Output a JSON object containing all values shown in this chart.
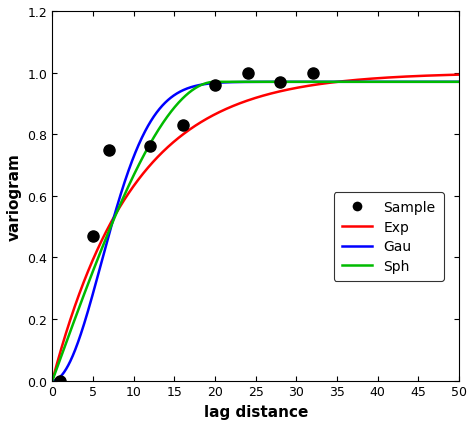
{
  "sample_x": [
    1,
    5,
    7,
    12,
    16,
    20,
    24,
    28,
    32
  ],
  "sample_y": [
    0.0,
    0.47,
    0.75,
    0.76,
    0.83,
    0.96,
    1.0,
    0.97,
    1.0
  ],
  "exp_sill": 1.0,
  "exp_range": 10.0,
  "exp_nugget": 0.0,
  "gau_sill": 0.97,
  "gau_range": 8.5,
  "gau_nugget": 0.0,
  "sph_sill": 0.97,
  "sph_range": 20.0,
  "sph_nugget": 0.0,
  "color_exp": "#ff0000",
  "color_gau": "#0000ff",
  "color_sph": "#00bb00",
  "color_sample": "#000000",
  "xlim": [
    0,
    50
  ],
  "ylim": [
    0,
    1.2
  ],
  "xlabel": "lag distance",
  "ylabel": "variogram",
  "xticks": [
    0,
    5,
    10,
    15,
    20,
    25,
    30,
    35,
    40,
    45,
    50
  ],
  "yticks": [
    0.0,
    0.2,
    0.4,
    0.6,
    0.8,
    1.0,
    1.2
  ],
  "legend_labels": [
    "Sample",
    "Exp",
    "Gau",
    "Sph"
  ],
  "line_width": 1.8,
  "marker_size": 8
}
